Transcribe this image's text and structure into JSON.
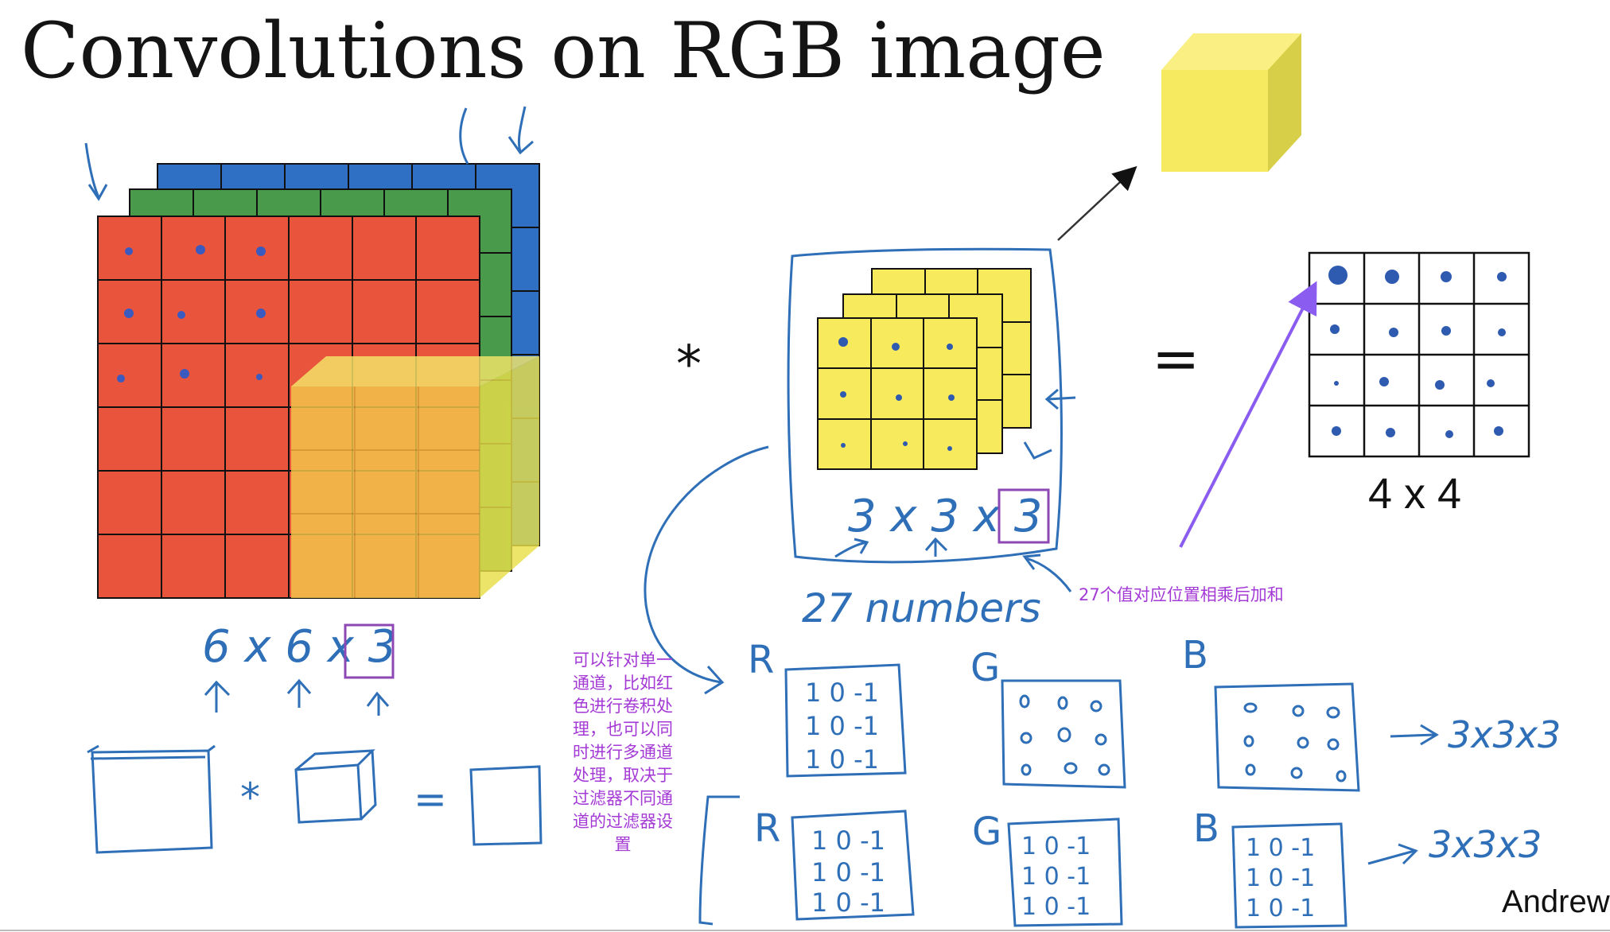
{
  "slide": {
    "title": "Convolutions on RGB image",
    "author": "Andrew",
    "output_size_label": "4 x 4"
  },
  "handwriting": {
    "conv_operator": "*",
    "equals": "=",
    "input_dims": "6 x 6 x 3",
    "filter_dims": "3 x 3 x 3",
    "filter_count": "27 numbers",
    "channel_labels": [
      "R",
      "G",
      "B"
    ],
    "filter_row1_result": "3x3x3",
    "filter_row2_result": "3x3x3",
    "filter_R_values": [
      "1 0 -1",
      "1 0 -1",
      "1 0 -1"
    ]
  },
  "annotations": {
    "left_note": "可以针对单一通道，比如红色进行卷积处理，也可以同时进行多通道处理，取决于过滤器不同通道的过滤器设置",
    "right_note": "27个值对应位置相乘后加和"
  },
  "colors": {
    "red_channel": "#e8553c",
    "green_channel": "#4a9a4c",
    "blue_channel": "#2f6fc4",
    "filter_yellow": "#f7ea5c",
    "ink_blue": "#2e6fb8",
    "annotation_purple": "#a43ad6",
    "arrow_purple": "#8a5cf0"
  }
}
